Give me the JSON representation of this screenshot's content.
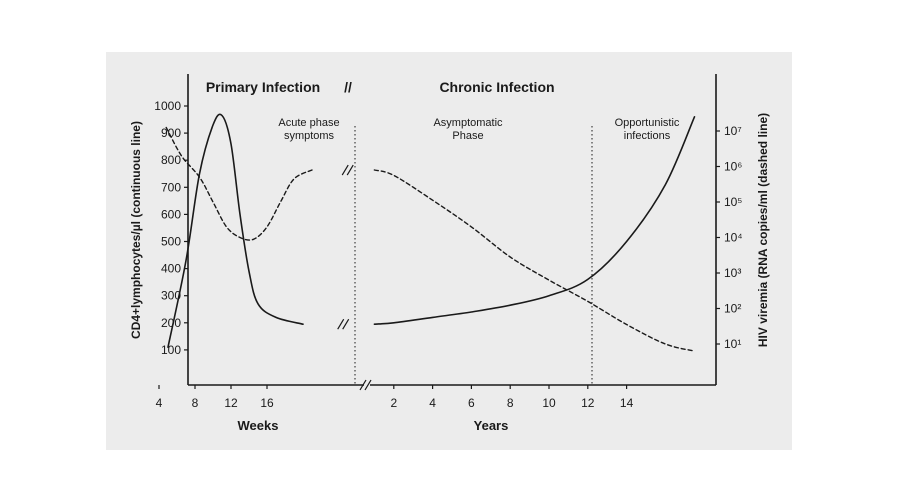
{
  "chart_data": {
    "type": "line",
    "headers": {
      "left": "Primary Infection",
      "separator": "//",
      "right": "Chronic Infection"
    },
    "phases": [
      {
        "lines": [
          "Acute phase",
          "symptoms"
        ]
      },
      {
        "lines": [
          "Asymptomatic",
          "Phase"
        ]
      },
      {
        "lines": [
          "Opportunistic",
          "infections"
        ]
      }
    ],
    "y_left": {
      "label": "CD4+lymphocytes/µl (continuous line)",
      "ticks": [
        100,
        200,
        300,
        400,
        500,
        600,
        700,
        800,
        900,
        1000
      ],
      "ylim": [
        0,
        1000
      ]
    },
    "y_right": {
      "label": "HIV viremia (RNA copies/ml (dashed line)",
      "ticks": [
        "10¹",
        "10²",
        "10³",
        "10⁴",
        "10⁵",
        "10⁶",
        "10⁷"
      ],
      "log_exponents": [
        1,
        2,
        3,
        4,
        5,
        6,
        7
      ]
    },
    "x_weeks": {
      "label": "Weeks",
      "ticks": [
        4,
        8,
        12,
        16
      ]
    },
    "x_years": {
      "label": "Years",
      "ticks": [
        2,
        4,
        6,
        8,
        10,
        12,
        14
      ]
    },
    "series": [
      {
        "style": "solid",
        "axis": "left",
        "weeks": [
          [
            5,
            110
          ],
          [
            7,
            430
          ],
          [
            8.5,
            750
          ],
          [
            10,
            930
          ],
          [
            11,
            965
          ],
          [
            12,
            860
          ],
          [
            13,
            600
          ],
          [
            14,
            390
          ],
          [
            15,
            270
          ],
          [
            17,
            220
          ],
          [
            20,
            195
          ]
        ],
        "years": [
          [
            1,
            195
          ],
          [
            2,
            200
          ],
          [
            4,
            220
          ],
          [
            6,
            240
          ],
          [
            8,
            265
          ],
          [
            10,
            300
          ],
          [
            12,
            360
          ],
          [
            14,
            500
          ],
          [
            16,
            710
          ],
          [
            17.5,
            960
          ]
        ]
      },
      {
        "style": "dashed",
        "axis": "right",
        "weeks": [
          [
            4.8,
            7.1
          ],
          [
            6.5,
            6.3
          ],
          [
            8.5,
            5.7
          ],
          [
            10,
            5.0
          ],
          [
            11.5,
            4.3
          ],
          [
            13,
            4.0
          ],
          [
            14.5,
            3.95
          ],
          [
            16,
            4.3
          ],
          [
            17.5,
            5.0
          ],
          [
            19,
            5.65
          ],
          [
            21,
            5.9
          ]
        ],
        "years": [
          [
            1,
            5.9
          ],
          [
            2,
            5.75
          ],
          [
            4,
            5.05
          ],
          [
            6,
            4.3
          ],
          [
            8,
            3.45
          ],
          [
            10,
            2.8
          ],
          [
            12,
            2.2
          ],
          [
            14,
            1.55
          ],
          [
            16,
            1.0
          ],
          [
            17.5,
            0.8
          ]
        ]
      }
    ]
  }
}
